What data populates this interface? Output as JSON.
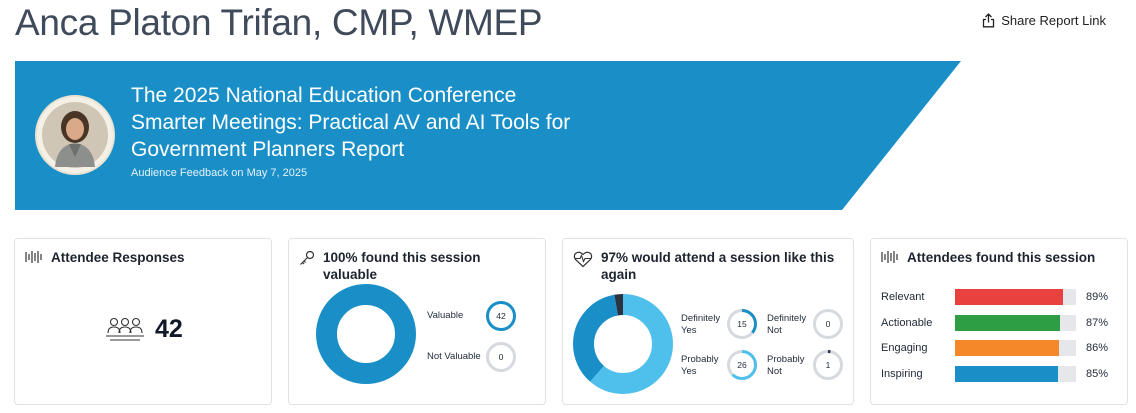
{
  "header": {
    "speaker_name": "Anca Platon Trifan, CMP, WMEP",
    "share_label": "Share Report Link"
  },
  "banner": {
    "title_lines": [
      "The 2025 National Education Conference",
      "Smarter Meetings: Practical AV and AI Tools for",
      "Government Planners Report"
    ],
    "subtitle": "Audience Feedback on May 7, 2025",
    "color": "#1a8fc7"
  },
  "cards": {
    "responses": {
      "title": "Attendee Responses",
      "count": "42"
    },
    "valuable": {
      "title": "100% found this session valuable",
      "items": [
        {
          "label": "Valuable",
          "value": "42",
          "fraction": 1.0,
          "color": "#1a8fc7"
        },
        {
          "label": "Not Valuable",
          "value": "0",
          "fraction": 0.0,
          "color": "#1a8fc7"
        }
      ]
    },
    "attend_again": {
      "title": "97% would attend a session like this again",
      "items": [
        {
          "label_lines": [
            "Definitely",
            "Yes"
          ],
          "value": "15",
          "fraction": 0.36,
          "color": "#1a8fc7"
        },
        {
          "label_lines": [
            "Definitely",
            "Not"
          ],
          "value": "0",
          "fraction": 0.0,
          "color": "#1a8fc7"
        },
        {
          "label_lines": [
            "Probably",
            "Yes"
          ],
          "value": "26",
          "fraction": 0.62,
          "color": "#4fc0ec"
        },
        {
          "label_lines": [
            "Probably",
            "Not"
          ],
          "value": "1",
          "fraction": 0.02,
          "color": "#2b3340"
        }
      ]
    },
    "found": {
      "title": "Attendees found this session",
      "rows": [
        {
          "label": "Relevant",
          "pct": "89%",
          "value": 89,
          "color": "#e8413e"
        },
        {
          "label": "Actionable",
          "pct": "87%",
          "value": 87,
          "color": "#2e9e45"
        },
        {
          "label": "Engaging",
          "pct": "86%",
          "value": 86,
          "color": "#f5892a"
        },
        {
          "label": "Inspiring",
          "pct": "85%",
          "value": 85,
          "color": "#1a8fc7"
        }
      ]
    }
  }
}
